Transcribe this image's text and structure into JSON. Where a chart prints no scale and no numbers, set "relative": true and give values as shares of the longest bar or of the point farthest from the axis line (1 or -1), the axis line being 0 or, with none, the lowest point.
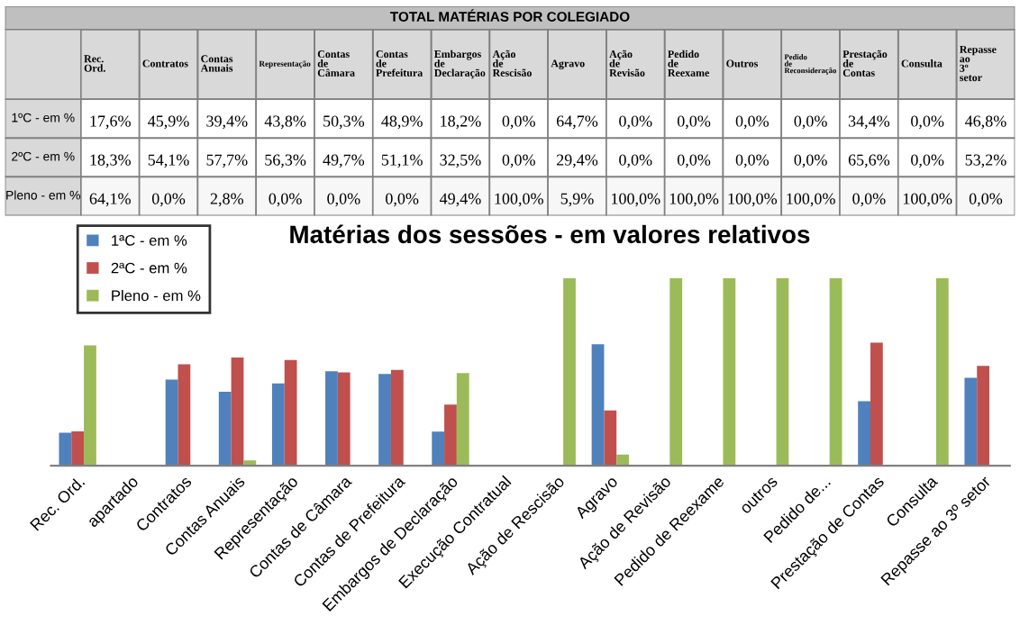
{
  "chart_data": [
    {
      "type": "other",
      "title": "TOTAL MATÉRIAS POR COLEGIADO",
      "categories": [
        "Rec. Ord.",
        "Contratos",
        "Contas Anuais",
        "Representação",
        "Contas de Câmara",
        "Contas de Prefeitura",
        "Embargos de Declaração",
        "Ação de Rescisão",
        "Agravo",
        "Ação de Revisão",
        "Pedido de Reexame",
        "Outros",
        "Pedido de Reconsideração",
        "Prestação de Contas",
        "Consulta",
        "Repasse ao 3º setor"
      ],
      "series": [
        {
          "name": "1ºC - em %",
          "values": [
            17.6,
            45.9,
            39.4,
            43.8,
            50.3,
            48.9,
            18.2,
            0.0,
            64.7,
            0.0,
            0.0,
            0.0,
            0.0,
            34.4,
            0.0,
            46.8
          ],
          "value_labels": [
            "17,6%",
            "45,9%",
            "39,4%",
            "43,8%",
            "50,3%",
            "48,9%",
            "18,2%",
            "0,0%",
            "64,7%",
            "0,0%",
            "0,0%",
            "0,0%",
            "0,0%",
            "34,4%",
            "0,0%",
            "46,8%"
          ]
        },
        {
          "name": "2ºC - em %",
          "values": [
            18.3,
            54.1,
            57.7,
            56.3,
            49.7,
            51.1,
            32.5,
            0.0,
            29.4,
            0.0,
            0.0,
            0.0,
            0.0,
            65.6,
            0.0,
            53.2
          ],
          "value_labels": [
            "18,3%",
            "54,1%",
            "57,7%",
            "56,3%",
            "49,7%",
            "51,1%",
            "32,5%",
            "0,0%",
            "29,4%",
            "0,0%",
            "0,0%",
            "0,0%",
            "0,0%",
            "65,6%",
            "0,0%",
            "53,2%"
          ]
        },
        {
          "name": "Pleno - em %",
          "values": [
            64.1,
            0.0,
            2.8,
            0.0,
            0.0,
            0.0,
            49.4,
            100.0,
            5.9,
            100.0,
            100.0,
            100.0,
            100.0,
            0.0,
            100.0,
            0.0
          ],
          "value_labels": [
            "64,1%",
            "0,0%",
            "2,8%",
            "0,0%",
            "0,0%",
            "0,0%",
            "49,4%",
            "100,0%",
            "5,9%",
            "100,0%",
            "100,0%",
            "100,0%",
            "100,0%",
            "0,0%",
            "100,0%",
            "0,0%"
          ]
        }
      ]
    },
    {
      "type": "bar",
      "title": "Matérias dos sessões - em valores relativos",
      "relative": true,
      "legend": "top left",
      "tick_labels": "x",
      "categories": [
        "Rec. Ord.",
        "apartado",
        "Contratos",
        "Contas Anuais",
        "Representação",
        "Contas de Câmara",
        "Contas de Prefeitura",
        "Embargos de Declaração",
        "Execução Contratual",
        "Ação de Rescisão",
        "Agravo",
        "Ação de Revisão",
        "Pedido de Reexame",
        "outros",
        "Pedido de...",
        "Prestação de Contas",
        "Consulta",
        "Repasse ao 3º setor"
      ],
      "series": [
        {
          "name": "1ªC - em %",
          "color": "#4f81bd",
          "values": [
            0.176,
            null,
            0.459,
            0.394,
            0.438,
            0.503,
            0.489,
            0.182,
            null,
            0.0,
            0.647,
            0.0,
            0.0,
            0.0,
            0.0,
            0.344,
            0.0,
            0.468
          ]
        },
        {
          "name": "2ªC - em %",
          "color": "#c0504d",
          "values": [
            0.183,
            null,
            0.541,
            0.577,
            0.563,
            0.497,
            0.511,
            0.325,
            null,
            0.0,
            0.294,
            0.0,
            0.0,
            0.0,
            0.0,
            0.656,
            0.0,
            0.532
          ]
        },
        {
          "name": "Pleno - em %",
          "color": "#9bbb59",
          "values": [
            0.641,
            null,
            0.0,
            0.028,
            0.0,
            0.0,
            0.0,
            0.494,
            null,
            1.0,
            0.059,
            1.0,
            1.0,
            1.0,
            1.0,
            0.0,
            1.0,
            0.0
          ]
        }
      ]
    }
  ]
}
